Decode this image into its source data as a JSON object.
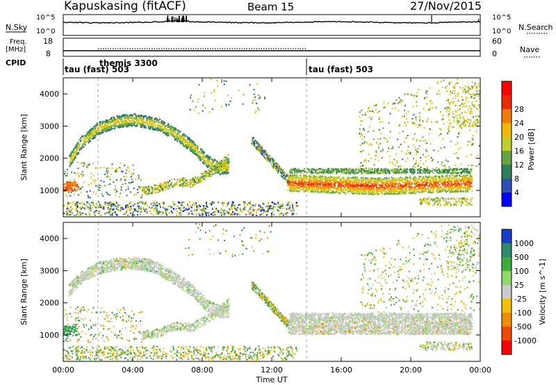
{
  "header": {
    "station": "Kapuskasing (fitACF)",
    "beam": "Beam 15",
    "date": "27/Nov/2015"
  },
  "noise_panel": {
    "left_label": "N.Sky",
    "right_label": "N.Search",
    "left_ticks": [
      "10^5",
      "10^0"
    ],
    "right_ticks": [
      "10^5",
      "10^0"
    ]
  },
  "freq_panel": {
    "left_label_1": "Freq.",
    "left_label_2": "[MHz]",
    "right_label": "Nave",
    "left_ticks": [
      "18",
      "8"
    ],
    "right_ticks": [
      "60",
      "0"
    ]
  },
  "cpid_panel": {
    "label": "CPID",
    "segments": [
      {
        "label": "tau (fast) 503",
        "start_hour": 0
      },
      {
        "label": "themis 3300",
        "start_hour": 2
      },
      {
        "label": "tau (fast) 503",
        "start_hour": 14
      }
    ]
  },
  "chart_data": [
    {
      "type": "heatmap",
      "quantity": "Power",
      "ylabel": "Slant Range [km]",
      "ylim": [
        180,
        4500
      ],
      "yticks": [
        "1000",
        "2000",
        "3000",
        "4000"
      ],
      "xlim_hours": [
        0,
        24
      ],
      "colorbar_label": "Power [dB]",
      "colorbar_ticks": [
        "4",
        "8",
        "12",
        "16",
        "20",
        "24",
        "28"
      ],
      "colorbar_colors": [
        "#0000ff",
        "#2d4fb4",
        "#2f7e59",
        "#66a43f",
        "#c2cf2e",
        "#f0b800",
        "#f07c00",
        "#ee2a00",
        "#ff0000"
      ],
      "features": [
        {
          "description": "arc",
          "x_hours": [
            0.3,
            2,
            4,
            5.5,
            7.5,
            9
          ],
          "y_km": [
            1900,
            2950,
            3200,
            3050,
            2400,
            1700
          ],
          "dominant": "16-24"
        },
        {
          "description": "band",
          "x_hours": [
            13,
            23.5
          ],
          "y_km": [
            1300,
            1000
          ],
          "dominant": "24-30"
        },
        {
          "description": "band",
          "x_hours": [
            0,
            0.8
          ],
          "y_km": [
            1150,
            1150
          ],
          "dominant": "24-30"
        }
      ]
    },
    {
      "type": "heatmap",
      "quantity": "Velocity",
      "ylabel": "Slant Range [km]",
      "ylim": [
        180,
        4500
      ],
      "yticks": [
        "1000",
        "2000",
        "3000",
        "4000"
      ],
      "xlim_hours": [
        0,
        24
      ],
      "xlabel": "Time UT",
      "xticks": [
        "00:00",
        "04:00",
        "08:00",
        "12:00",
        "16:00",
        "20:00",
        "00:00"
      ],
      "colorbar_label": "Velocity [m s^-1]",
      "colorbar_ticks": [
        "1000",
        "500",
        "100",
        "25",
        "-25",
        "-100",
        "-500",
        "-1000"
      ],
      "colorbar_colors": [
        "#1a3cc8",
        "#2d8a6e",
        "#3dac3d",
        "#8fd86a",
        "#cbcbcb",
        "#f0c000",
        "#f08c00",
        "#ef4a00",
        "#ff0000"
      ],
      "features": [
        {
          "description": "arc",
          "x_hours": [
            0.3,
            2,
            4,
            5.5,
            7.5,
            9
          ],
          "y_km": [
            2400,
            3100,
            3250,
            3000,
            2350,
            1750
          ],
          "dominant": "-25 to 25"
        },
        {
          "description": "band",
          "x_hours": [
            13,
            23.5
          ],
          "y_km": [
            1300,
            1300
          ],
          "dominant": "-25 to 25"
        }
      ]
    }
  ]
}
